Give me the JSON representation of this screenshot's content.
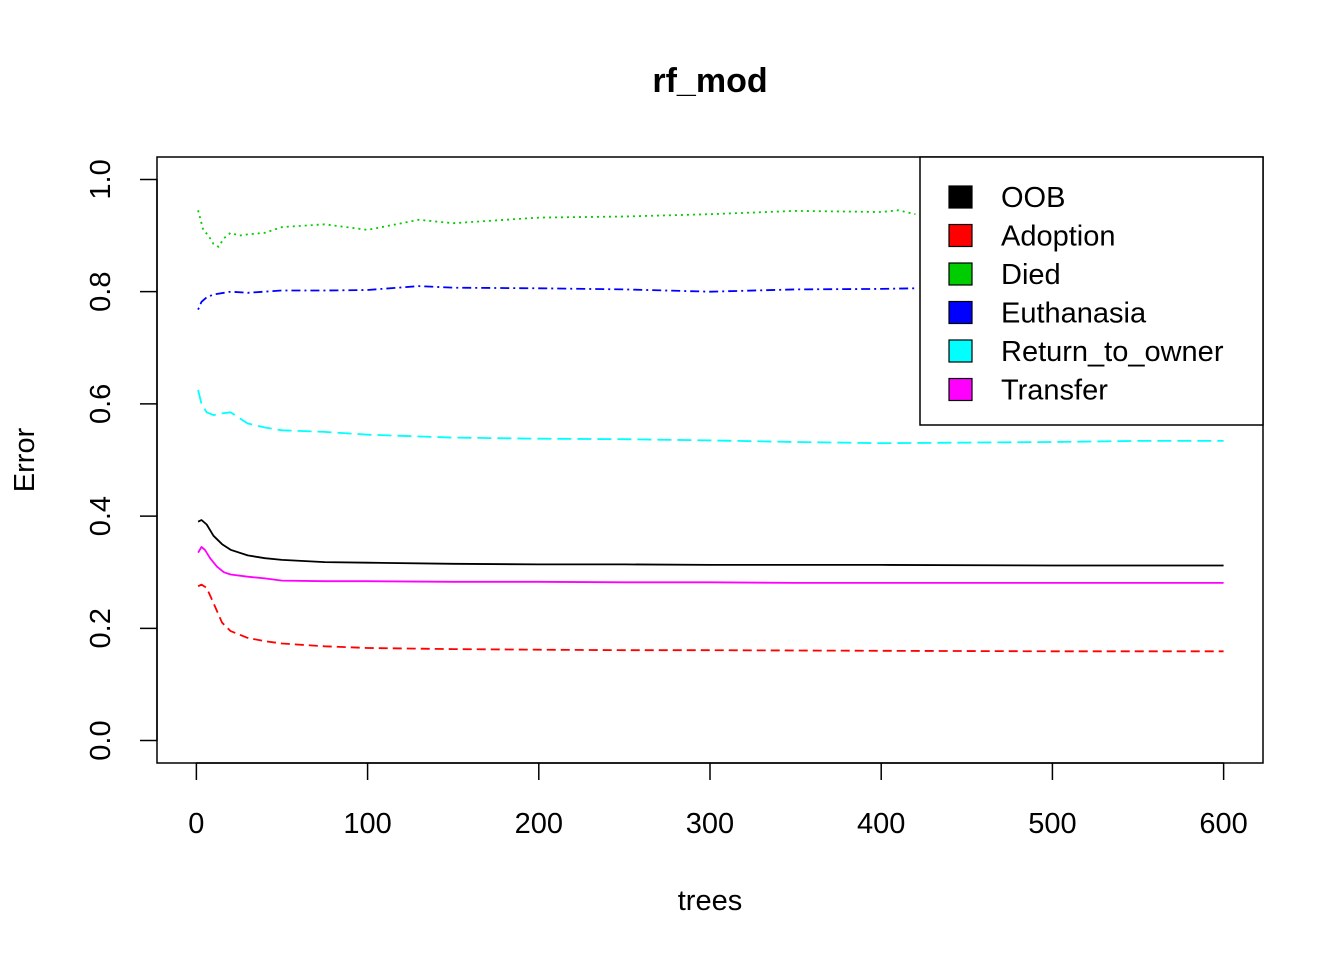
{
  "chart_data": {
    "type": "line",
    "title": "rf_mod",
    "xlabel": "trees",
    "ylabel": "Error",
    "xlim": [
      -23,
      623
    ],
    "ylim": [
      -0.04,
      1.04
    ],
    "x_ticks": [
      0,
      100,
      200,
      300,
      400,
      500,
      600
    ],
    "y_ticks": [
      0.0,
      0.2,
      0.4,
      0.6,
      0.8,
      1.0
    ],
    "x_tick_labels": [
      "0",
      "100",
      "200",
      "300",
      "400",
      "500",
      "600"
    ],
    "y_tick_labels": [
      "0.0",
      "0.2",
      "0.4",
      "0.6",
      "0.8",
      "1.0"
    ],
    "grid": false,
    "legend_position": "top-right",
    "series": [
      {
        "name": "OOB",
        "color": "#000000",
        "dash": "solid",
        "x": [
          1,
          3,
          6,
          10,
          15,
          20,
          30,
          40,
          50,
          75,
          100,
          150,
          200,
          250,
          300,
          400,
          500,
          600
        ],
        "values": [
          0.39,
          0.393,
          0.385,
          0.365,
          0.35,
          0.34,
          0.33,
          0.325,
          0.322,
          0.318,
          0.317,
          0.315,
          0.314,
          0.314,
          0.313,
          0.313,
          0.312,
          0.312
        ]
      },
      {
        "name": "Adoption",
        "color": "#ff0000",
        "dash": "dashed",
        "x": [
          1,
          3,
          6,
          10,
          15,
          20,
          30,
          40,
          50,
          75,
          100,
          150,
          200,
          250,
          300,
          400,
          500,
          600
        ],
        "values": [
          0.275,
          0.278,
          0.272,
          0.245,
          0.21,
          0.195,
          0.183,
          0.177,
          0.173,
          0.168,
          0.165,
          0.163,
          0.162,
          0.161,
          0.161,
          0.16,
          0.159,
          0.159
        ]
      },
      {
        "name": "Died",
        "color": "#00cd00",
        "dash": "dotted",
        "x": [
          1,
          4,
          7,
          10,
          13,
          16,
          20,
          25,
          30,
          40,
          50,
          75,
          100,
          130,
          150,
          200,
          250,
          300,
          350,
          400,
          410,
          420
        ],
        "values": [
          0.945,
          0.91,
          0.9,
          0.885,
          0.88,
          0.895,
          0.905,
          0.9,
          0.902,
          0.905,
          0.915,
          0.92,
          0.91,
          0.928,
          0.922,
          0.932,
          0.934,
          0.938,
          0.944,
          0.942,
          0.945,
          0.938
        ]
      },
      {
        "name": "Euthanasia",
        "color": "#0000ff",
        "dash": "dashdot",
        "x": [
          1,
          3,
          6,
          10,
          20,
          30,
          50,
          75,
          100,
          130,
          150,
          200,
          250,
          300,
          350,
          400,
          420
        ],
        "values": [
          0.768,
          0.782,
          0.79,
          0.795,
          0.8,
          0.798,
          0.802,
          0.802,
          0.803,
          0.81,
          0.807,
          0.806,
          0.804,
          0.8,
          0.804,
          0.805,
          0.806
        ]
      },
      {
        "name": "Return_to_owner",
        "color": "#00ffff",
        "dash": "longdash",
        "x": [
          1,
          3,
          6,
          10,
          15,
          20,
          25,
          30,
          40,
          50,
          75,
          100,
          150,
          200,
          250,
          300,
          350,
          400,
          450,
          500,
          550,
          600
        ],
        "values": [
          0.625,
          0.6,
          0.585,
          0.58,
          0.583,
          0.585,
          0.575,
          0.565,
          0.558,
          0.553,
          0.55,
          0.545,
          0.54,
          0.538,
          0.537,
          0.535,
          0.532,
          0.53,
          0.531,
          0.532,
          0.534,
          0.534
        ]
      },
      {
        "name": "Transfer",
        "color": "#ff00ff",
        "dash": "solid",
        "x": [
          1,
          3,
          5,
          8,
          12,
          16,
          20,
          30,
          40,
          50,
          75,
          100,
          150,
          200,
          250,
          300,
          350,
          400,
          450,
          500,
          600
        ],
        "values": [
          0.335,
          0.345,
          0.34,
          0.325,
          0.31,
          0.3,
          0.296,
          0.292,
          0.289,
          0.285,
          0.284,
          0.284,
          0.283,
          0.283,
          0.282,
          0.282,
          0.281,
          0.281,
          0.281,
          0.281,
          0.281
        ]
      }
    ]
  }
}
